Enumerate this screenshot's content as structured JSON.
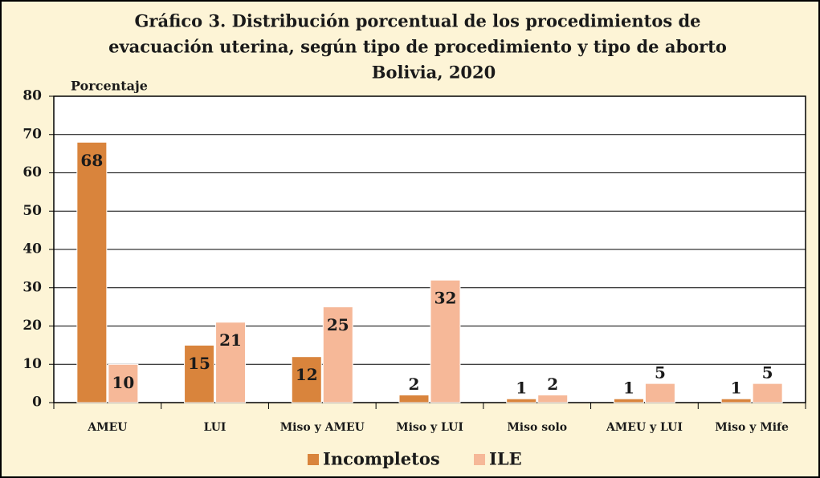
{
  "chart_data": {
    "type": "bar",
    "title": [
      "Gráfico 3. Distribución porcentual de los procedimientos de",
      "evacuación uterina, según tipo de procedimiento y  tipo de aborto",
      "Bolivia, 2020"
    ],
    "y_label": "Porcentaje",
    "categories": [
      "AMEU",
      "LUI",
      "Miso y AMEU",
      "Miso y LUI",
      "Miso solo",
      "AMEU y LUI",
      "Miso y Mife"
    ],
    "series": [
      {
        "name": "Incompletos",
        "color": "#d9843c",
        "values": [
          68,
          15,
          12,
          2,
          1,
          1,
          1
        ]
      },
      {
        "name": "ILE",
        "color": "#f6b898",
        "values": [
          10,
          21,
          25,
          32,
          2,
          5,
          5
        ]
      }
    ],
    "ylim": [
      0,
      80
    ],
    "yticks": [
      0,
      10,
      20,
      30,
      40,
      50,
      60,
      70,
      80
    ],
    "grid": true,
    "legend": "bottom"
  }
}
